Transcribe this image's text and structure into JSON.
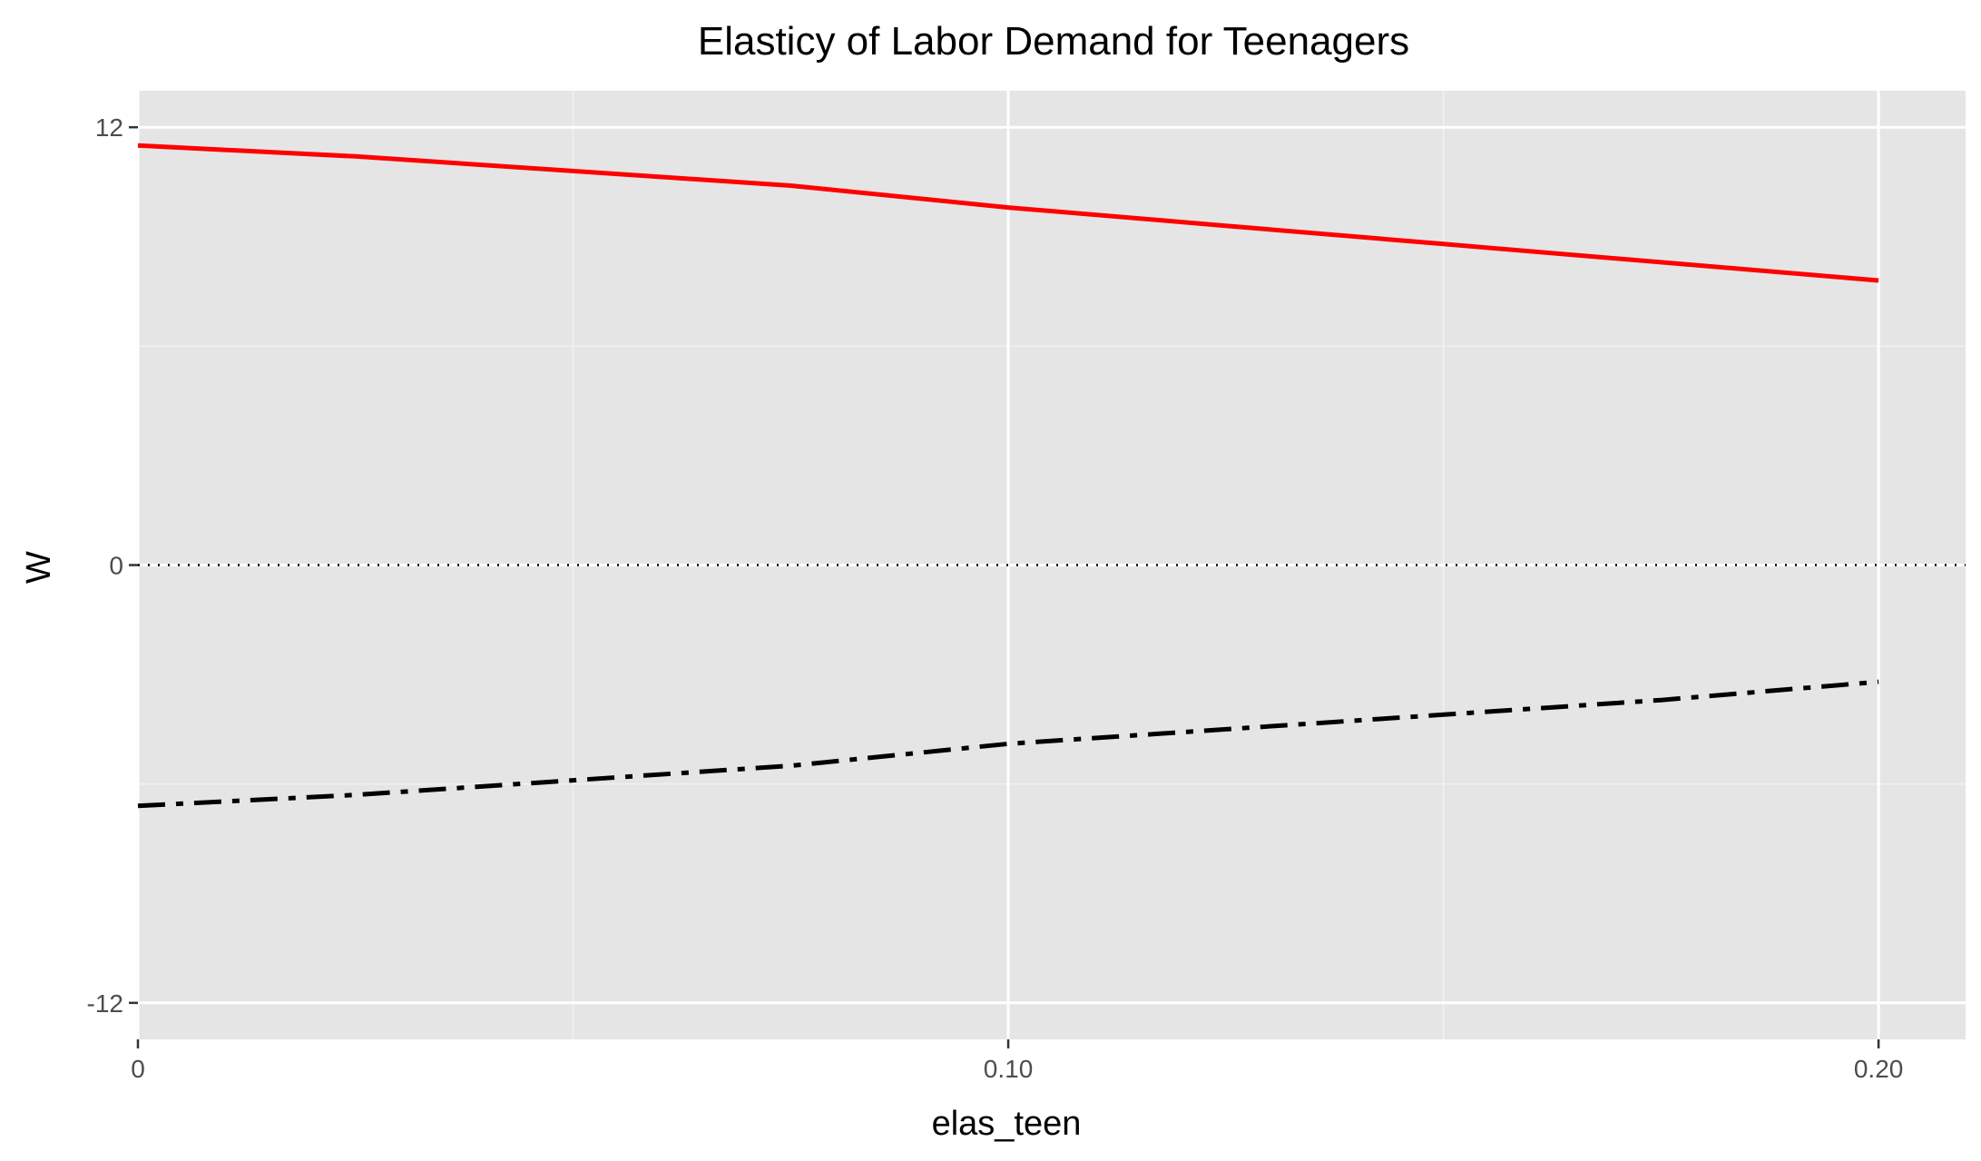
{
  "chart_data": {
    "type": "line",
    "title": "Elasticy of Labor Demand for Teenagers",
    "xlabel": "elas_teen",
    "ylabel": "W",
    "xlim": [
      0,
      0.21
    ],
    "ylim": [
      -13,
      13
    ],
    "x_ticks": [
      0,
      0.1,
      0.2
    ],
    "x_tick_labels": [
      "0",
      "0.10",
      "0.20"
    ],
    "y_ticks": [
      -12,
      0,
      12
    ],
    "y_tick_labels": [
      "-12",
      "0",
      "12"
    ],
    "grid": true,
    "background": "#e5e5e5",
    "reference_line": {
      "y": 0,
      "style": "dotted",
      "color": "#000000"
    },
    "series": [
      {
        "x": [
          0,
          0.025,
          0.05,
          0.075,
          0.1,
          0.125,
          0.15,
          0.175,
          0.2
        ],
        "values": [
          11.5,
          11.2,
          10.8,
          10.4,
          9.8,
          9.3,
          8.8,
          8.3,
          7.8
        ],
        "color": "#ff0000",
        "dash": "solid"
      },
      {
        "x": [
          0,
          0.025,
          0.05,
          0.075,
          0.1,
          0.125,
          0.15,
          0.175,
          0.2
        ],
        "values": [
          -6.6,
          -6.3,
          -5.9,
          -5.5,
          -4.9,
          -4.5,
          -4.1,
          -3.7,
          -3.2
        ],
        "color": "#000000",
        "dash": "dashdot"
      }
    ]
  }
}
